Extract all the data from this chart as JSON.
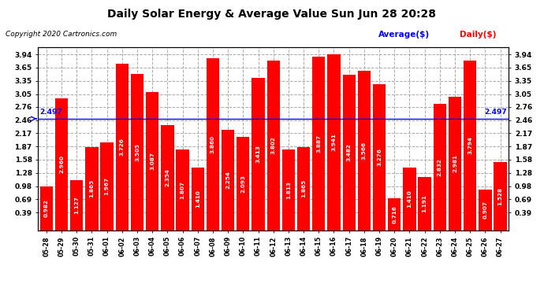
{
  "title": "Daily Solar Energy & Average Value Sun Jun 28 20:28",
  "copyright": "Copyright 2020 Cartronics.com",
  "average_label": "Average($)",
  "daily_label": "Daily($)",
  "average_value": 2.497,
  "average_color": "blue",
  "bar_color": "red",
  "categories": [
    "05-28",
    "05-29",
    "05-30",
    "05-31",
    "06-01",
    "06-02",
    "06-03",
    "06-04",
    "06-05",
    "06-06",
    "06-07",
    "06-08",
    "06-09",
    "06-10",
    "06-11",
    "06-12",
    "06-13",
    "06-14",
    "06-15",
    "06-16",
    "06-17",
    "06-18",
    "06-19",
    "06-20",
    "06-21",
    "06-22",
    "06-23",
    "06-24",
    "06-25",
    "06-26",
    "06-27"
  ],
  "values": [
    0.982,
    2.96,
    1.127,
    1.865,
    1.967,
    3.726,
    3.505,
    3.087,
    2.354,
    1.807,
    1.41,
    3.86,
    2.254,
    2.093,
    3.413,
    3.802,
    1.813,
    1.865,
    3.887,
    3.941,
    3.482,
    3.566,
    3.276,
    0.716,
    1.41,
    1.191,
    2.832,
    2.981,
    3.794,
    0.907,
    1.528
  ],
  "yticks": [
    0.39,
    0.69,
    0.98,
    1.28,
    1.58,
    1.87,
    2.17,
    2.46,
    2.76,
    3.05,
    3.35,
    3.65,
    3.94
  ],
  "ylim": [
    0.0,
    4.1
  ],
  "background_color": "#ffffff",
  "grid_color": "#aaaaaa"
}
